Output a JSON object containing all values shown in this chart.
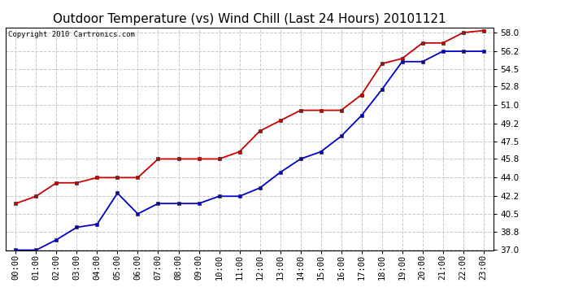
{
  "title": "Outdoor Temperature (vs) Wind Chill (Last 24 Hours) 20101121",
  "copyright": "Copyright 2010 Cartronics.com",
  "x_labels": [
    "00:00",
    "01:00",
    "02:00",
    "03:00",
    "04:00",
    "05:00",
    "06:00",
    "07:00",
    "08:00",
    "09:00",
    "10:00",
    "11:00",
    "12:00",
    "13:00",
    "14:00",
    "15:00",
    "16:00",
    "17:00",
    "18:00",
    "19:00",
    "20:00",
    "21:00",
    "22:00",
    "23:00"
  ],
  "temp_red": [
    41.5,
    42.2,
    43.5,
    43.5,
    44.0,
    44.0,
    44.0,
    45.8,
    45.8,
    45.8,
    45.8,
    46.5,
    48.5,
    49.5,
    50.5,
    50.5,
    50.5,
    52.0,
    55.0,
    55.5,
    57.0,
    57.0,
    58.0,
    58.2
  ],
  "temp_blue": [
    37.0,
    37.0,
    38.0,
    39.2,
    39.5,
    42.5,
    40.5,
    41.5,
    41.5,
    41.5,
    42.2,
    42.2,
    43.0,
    44.5,
    45.8,
    46.5,
    48.0,
    50.0,
    52.5,
    55.2,
    55.2,
    56.2,
    56.2,
    56.2
  ],
  "ylim": [
    37.0,
    58.5
  ],
  "yticks": [
    37.0,
    38.8,
    40.5,
    42.2,
    44.0,
    45.8,
    47.5,
    49.2,
    51.0,
    52.8,
    54.5,
    56.2,
    58.0
  ],
  "bg_color": "#ffffff",
  "plot_bg": "#ffffff",
  "grid_color": "#c8c8c8",
  "red_color": "#cc0000",
  "blue_color": "#0000cc",
  "title_fontsize": 11,
  "tick_fontsize": 7.5,
  "copyright_fontsize": 6.5,
  "marker_size": 3.5,
  "linewidth": 1.3
}
